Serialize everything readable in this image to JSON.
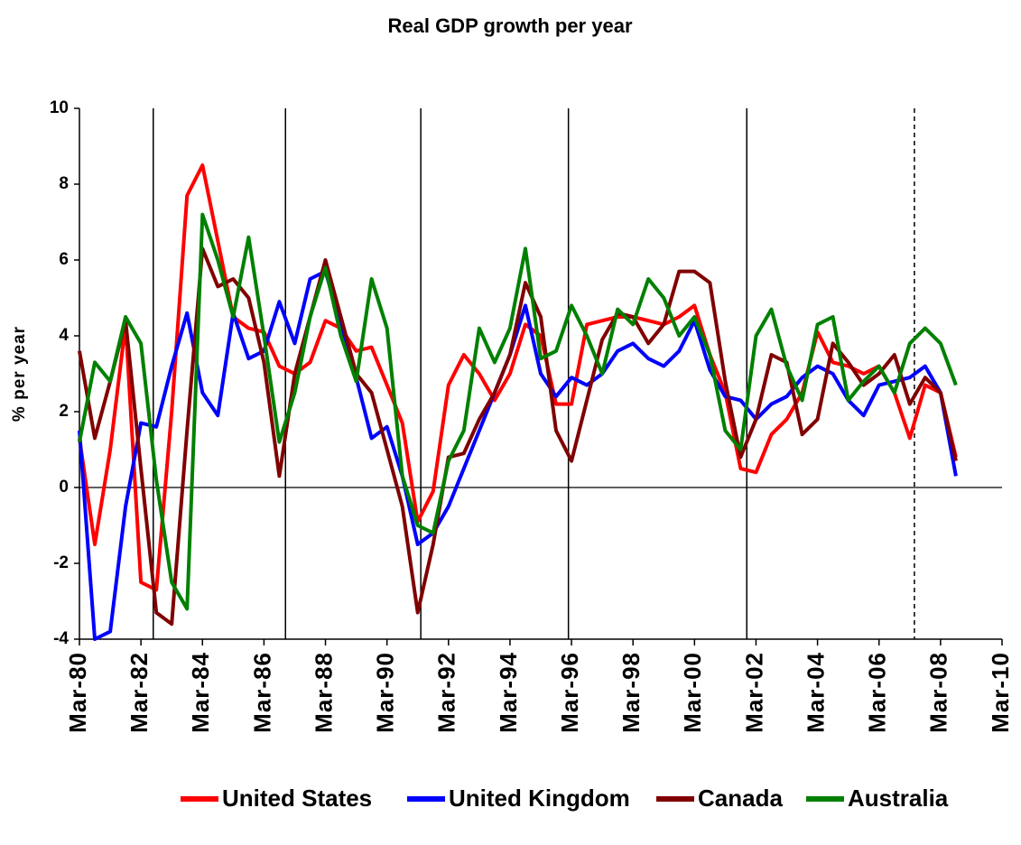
{
  "chart_data": {
    "type": "line",
    "title": "Real GDP growth per year",
    "y_label": "% per year",
    "x": [
      1980,
      1980.5,
      1981,
      1981.5,
      1982,
      1982.5,
      1983,
      1983.5,
      1984,
      1984.5,
      1985,
      1985.5,
      1986,
      1986.5,
      1987,
      1987.5,
      1988,
      1988.5,
      1989,
      1989.5,
      1990,
      1990.5,
      1991,
      1991.5,
      1992,
      1992.5,
      1993,
      1993.5,
      1994,
      1994.5,
      1995,
      1995.5,
      1996,
      1996.5,
      1997,
      1997.5,
      1998,
      1998.5,
      1999,
      1999.5,
      2000,
      2000.5,
      2001,
      2001.5,
      2002,
      2002.5,
      2003,
      2003.5,
      2004,
      2004.5,
      2005,
      2005.5,
      2006,
      2006.5,
      2007,
      2007.5,
      2008,
      2008.5
    ],
    "series": [
      {
        "name": "United States",
        "color": "#ff0000",
        "values": [
          1.3,
          -1.5,
          1.0,
          4.3,
          -2.5,
          -2.7,
          2.0,
          7.7,
          8.5,
          6.5,
          4.5,
          4.2,
          4.1,
          3.2,
          3.0,
          3.3,
          4.4,
          4.2,
          3.6,
          3.7,
          2.7,
          1.7,
          -0.9,
          -0.1,
          2.7,
          3.5,
          3.0,
          2.3,
          3.0,
          4.3,
          4.0,
          2.2,
          2.2,
          4.3,
          4.4,
          4.5,
          4.5,
          4.4,
          4.3,
          4.5,
          4.8,
          3.5,
          2.5,
          0.5,
          0.4,
          1.4,
          1.8,
          2.5,
          4.1,
          3.3,
          3.2,
          3.0,
          3.2,
          2.5,
          1.3,
          2.7,
          2.5,
          0.8
        ]
      },
      {
        "name": "United Kingdom",
        "color": "#0000ff",
        "values": [
          1.5,
          -4.0,
          -3.8,
          -0.5,
          1.7,
          1.6,
          3.2,
          4.6,
          2.5,
          1.9,
          4.6,
          3.4,
          3.6,
          4.9,
          3.8,
          5.5,
          5.7,
          4.3,
          2.9,
          1.3,
          1.6,
          0.3,
          -1.5,
          -1.2,
          -0.5,
          0.5,
          1.5,
          2.5,
          3.5,
          4.8,
          3.0,
          2.4,
          2.9,
          2.7,
          3.0,
          3.6,
          3.8,
          3.4,
          3.2,
          3.6,
          4.4,
          3.1,
          2.4,
          2.3,
          1.8,
          2.2,
          2.4,
          2.9,
          3.2,
          3.0,
          2.3,
          1.9,
          2.7,
          2.8,
          2.9,
          3.2,
          2.5,
          0.3
        ]
      },
      {
        "name": "Canada",
        "color": "#800000",
        "values": [
          3.6,
          1.3,
          2.8,
          4.4,
          0.5,
          -3.3,
          -3.6,
          1.5,
          6.3,
          5.3,
          5.5,
          5.0,
          3.3,
          0.3,
          3.0,
          4.5,
          6.0,
          4.5,
          3.0,
          2.5,
          1.0,
          -0.5,
          -3.3,
          -1.5,
          0.8,
          0.9,
          1.8,
          2.5,
          3.5,
          5.4,
          4.5,
          1.5,
          0.7,
          2.3,
          3.9,
          4.6,
          4.5,
          3.8,
          4.3,
          5.7,
          5.7,
          5.4,
          2.8,
          0.8,
          1.8,
          3.5,
          3.3,
          1.4,
          1.8,
          3.8,
          3.3,
          2.7,
          3.0,
          3.5,
          2.2,
          2.9,
          2.5,
          0.7
        ]
      },
      {
        "name": "Australia",
        "color": "#008000",
        "values": [
          1.2,
          3.3,
          2.8,
          4.5,
          3.8,
          0.2,
          -2.5,
          -3.2,
          7.2,
          6.0,
          4.5,
          6.6,
          4.0,
          1.2,
          2.5,
          4.5,
          5.8,
          4.0,
          2.8,
          5.5,
          4.2,
          0.3,
          -1.0,
          -1.2,
          0.7,
          1.5,
          4.2,
          3.3,
          4.2,
          6.3,
          3.4,
          3.6,
          4.8,
          4.0,
          3.0,
          4.7,
          4.3,
          5.5,
          5.0,
          4.0,
          4.5,
          3.5,
          1.5,
          1.0,
          4.0,
          4.7,
          3.2,
          2.3,
          4.3,
          4.5,
          2.3,
          2.8,
          3.2,
          2.5,
          3.8,
          4.2,
          3.8,
          2.7
        ]
      }
    ],
    "xlim": [
      1980,
      2010
    ],
    "xticks": [
      {
        "value": 1980,
        "label": "Mar-80"
      },
      {
        "value": 1982,
        "label": "Mar-82"
      },
      {
        "value": 1984,
        "label": "Mar-84"
      },
      {
        "value": 1986,
        "label": "Mar-86"
      },
      {
        "value": 1988,
        "label": "Mar-88"
      },
      {
        "value": 1990,
        "label": "Mar-90"
      },
      {
        "value": 1992,
        "label": "Mar-92"
      },
      {
        "value": 1994,
        "label": "Mar-94"
      },
      {
        "value": 1996,
        "label": "Mar-96"
      },
      {
        "value": 1998,
        "label": "Mar-98"
      },
      {
        "value": 2000,
        "label": "Mar-00"
      },
      {
        "value": 2002,
        "label": "Mar-02"
      },
      {
        "value": 2004,
        "label": "Mar-04"
      },
      {
        "value": 2006,
        "label": "Mar-06"
      },
      {
        "value": 2008,
        "label": "Mar-08"
      },
      {
        "value": 2010,
        "label": "Mar-10"
      }
    ],
    "ylim": [
      -4,
      10
    ],
    "yticks": [
      -4,
      -2,
      0,
      2,
      4,
      6,
      8,
      10
    ],
    "vlines": [
      1982.4,
      1986.7,
      1991.1,
      1995.9,
      2001.7
    ],
    "dashed_vlines": [
      2007.15
    ],
    "legend": "bottom"
  }
}
